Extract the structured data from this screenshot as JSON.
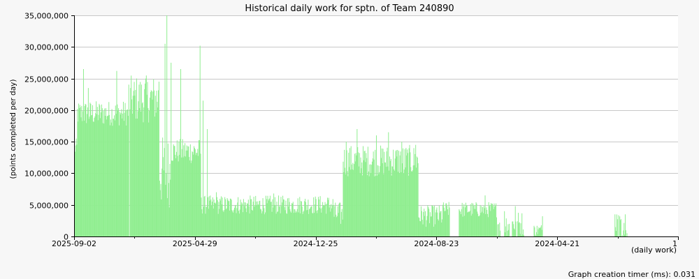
{
  "chart_data": {
    "type": "bar",
    "title": "Historical daily work for sptn. of Team 240890",
    "ylabel": "(points completed per day)",
    "xlabel": "(daily work)",
    "footer": "Graph creation timer (ms): 0.031",
    "ylim": [
      0,
      35000000
    ],
    "y_ticks": [
      0,
      5000000,
      10000000,
      15000000,
      20000000,
      25000000,
      30000000,
      35000000
    ],
    "y_tick_labels": [
      "0",
      "5,000,000",
      "10,000,000",
      "15,000,000",
      "20,000,000",
      "25,000,000",
      "30,000,000",
      "35,000,000"
    ],
    "x_tick_labels": [
      "2025-09-02",
      "2025-04-29",
      "2024-12-25",
      "2024-08-23",
      "2024-04-21",
      "1"
    ],
    "grid": true,
    "bar_color": "#90ee90",
    "days_shown": 1000,
    "x_direction": "most recent day on the left, oldest on the right",
    "segments": [
      {
        "from": 0,
        "to": 5,
        "low": 12500000,
        "high": 15500000
      },
      {
        "from": 5,
        "to": 90,
        "low": 17500000,
        "high": 21500000
      },
      {
        "from": 90,
        "to": 140,
        "low": 18000000,
        "high": 25500000
      },
      {
        "from": 140,
        "to": 160,
        "low": 4500000,
        "high": 16000000
      },
      {
        "from": 160,
        "to": 210,
        "low": 11500000,
        "high": 15500000
      },
      {
        "from": 210,
        "to": 430,
        "low": 3500000,
        "high": 6500000
      },
      {
        "from": 430,
        "to": 445,
        "low": 1500000,
        "high": 5500000
      },
      {
        "from": 445,
        "to": 570,
        "low": 9500000,
        "high": 14500000
      },
      {
        "from": 570,
        "to": 610,
        "low": 1500000,
        "high": 5000000
      },
      {
        "from": 610,
        "to": 700,
        "low": 3000000,
        "high": 5500000
      },
      {
        "from": 700,
        "to": 760,
        "low": 0,
        "high": 4000000
      },
      {
        "from": 760,
        "to": 800,
        "low": 0,
        "high": 2000000
      },
      {
        "from": 800,
        "to": 895,
        "low": 0,
        "high": 3000000
      },
      {
        "from": 895,
        "to": 925,
        "low": 0,
        "high": 3500000
      },
      {
        "from": 925,
        "to": 1000,
        "low": 0,
        "high": 500000
      }
    ],
    "peaks": [
      {
        "day": 15,
        "value": 26500000
      },
      {
        "day": 23,
        "value": 23500000
      },
      {
        "day": 70,
        "value": 26200000
      },
      {
        "day": 93,
        "value": 23500000
      },
      {
        "day": 118,
        "value": 25000000
      },
      {
        "day": 140,
        "value": 24500000
      },
      {
        "day": 150,
        "value": 30500000
      },
      {
        "day": 153,
        "value": 35000000
      },
      {
        "day": 160,
        "value": 27500000
      },
      {
        "day": 176,
        "value": 26500000
      },
      {
        "day": 208,
        "value": 30200000
      },
      {
        "day": 213,
        "value": 21500000
      },
      {
        "day": 220,
        "value": 17000000
      },
      {
        "day": 235,
        "value": 7000000
      },
      {
        "day": 330,
        "value": 6800000
      },
      {
        "day": 450,
        "value": 15000000
      },
      {
        "day": 468,
        "value": 17000000
      },
      {
        "day": 500,
        "value": 16000000
      },
      {
        "day": 520,
        "value": 16500000
      },
      {
        "day": 542,
        "value": 15000000
      },
      {
        "day": 545,
        "value": 10000000
      },
      {
        "day": 565,
        "value": 14500000
      },
      {
        "day": 610,
        "value": 5000000
      },
      {
        "day": 680,
        "value": 6500000
      },
      {
        "day": 712,
        "value": 4000000
      },
      {
        "day": 730,
        "value": 4800000
      },
      {
        "day": 775,
        "value": 3200000
      },
      {
        "day": 895,
        "value": 3500000
      },
      {
        "day": 912,
        "value": 3500000
      }
    ],
    "zero_days": [
      91,
      622,
      623,
      624,
      625,
      626,
      627,
      628,
      629,
      630,
      631,
      632,
      633,
      634,
      635,
      636,
      706,
      707,
      708,
      709,
      710,
      711,
      721,
      722,
      723,
      724,
      732,
      733,
      745,
      746,
      747,
      748,
      749,
      750,
      751,
      752,
      753,
      754,
      755,
      756,
      757,
      758,
      759,
      760,
      776,
      777,
      778,
      779,
      780,
      781,
      782,
      783,
      784,
      785,
      786,
      787,
      788,
      789,
      790,
      791,
      792,
      793,
      794,
      795,
      796,
      797,
      798,
      799,
      800,
      801,
      802,
      803,
      804,
      805,
      806,
      807,
      808,
      809,
      810,
      811,
      812,
      813,
      814,
      815,
      816,
      817,
      818,
      819,
      820,
      821,
      822,
      823,
      824,
      825,
      826,
      827,
      828,
      829,
      830,
      831,
      832,
      833,
      834,
      835,
      836,
      837,
      838,
      839,
      840,
      841,
      842,
      843,
      844,
      845,
      846,
      847,
      848,
      849,
      850,
      851,
      852,
      853,
      854,
      855,
      856,
      857,
      858,
      859,
      860,
      861,
      862,
      863,
      864,
      865,
      866,
      867,
      868,
      869,
      870,
      871,
      872,
      873,
      874,
      875,
      876,
      877,
      878,
      879,
      880,
      881,
      882,
      883,
      884,
      885,
      886,
      887,
      888,
      889,
      890,
      891,
      892,
      893,
      894,
      900,
      902,
      906,
      908,
      914,
      916,
      917,
      918,
      919,
      920,
      921,
      922,
      923,
      924,
      925,
      926,
      927,
      928,
      929,
      930,
      931,
      932,
      933,
      934,
      935,
      936,
      937,
      938,
      939,
      940,
      941,
      942,
      943,
      944,
      945,
      946,
      947,
      948,
      949,
      950,
      951,
      952,
      953,
      954,
      955,
      956,
      957,
      958,
      959,
      960,
      961,
      962,
      963,
      964,
      965,
      966,
      967,
      968,
      969,
      970,
      971,
      972,
      973,
      974,
      975,
      976,
      977,
      978,
      979,
      980,
      981,
      982,
      983,
      984,
      985,
      986,
      987,
      988,
      989,
      990,
      991,
      992,
      993,
      994,
      995,
      996,
      997,
      998,
      999
    ]
  }
}
